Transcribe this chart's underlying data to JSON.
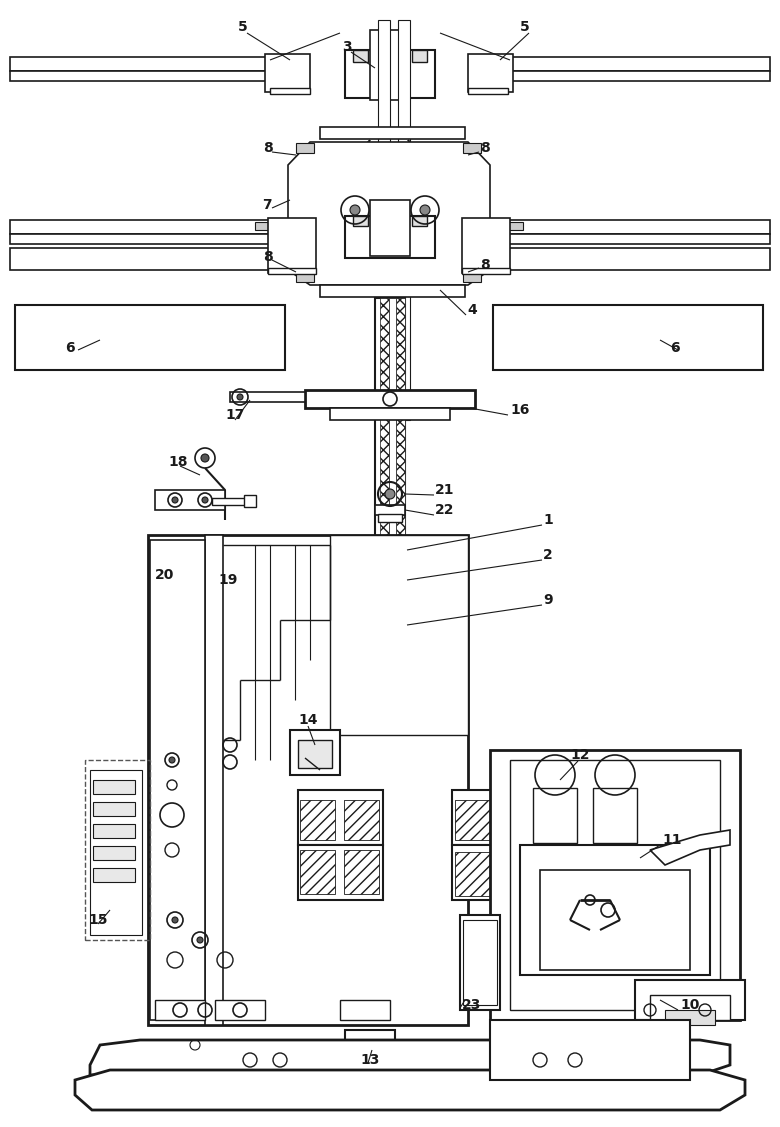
{
  "fig_width": 7.8,
  "fig_height": 11.27,
  "dpi": 100,
  "line_color": "#1a1a1a",
  "bg_color": "#ffffff"
}
